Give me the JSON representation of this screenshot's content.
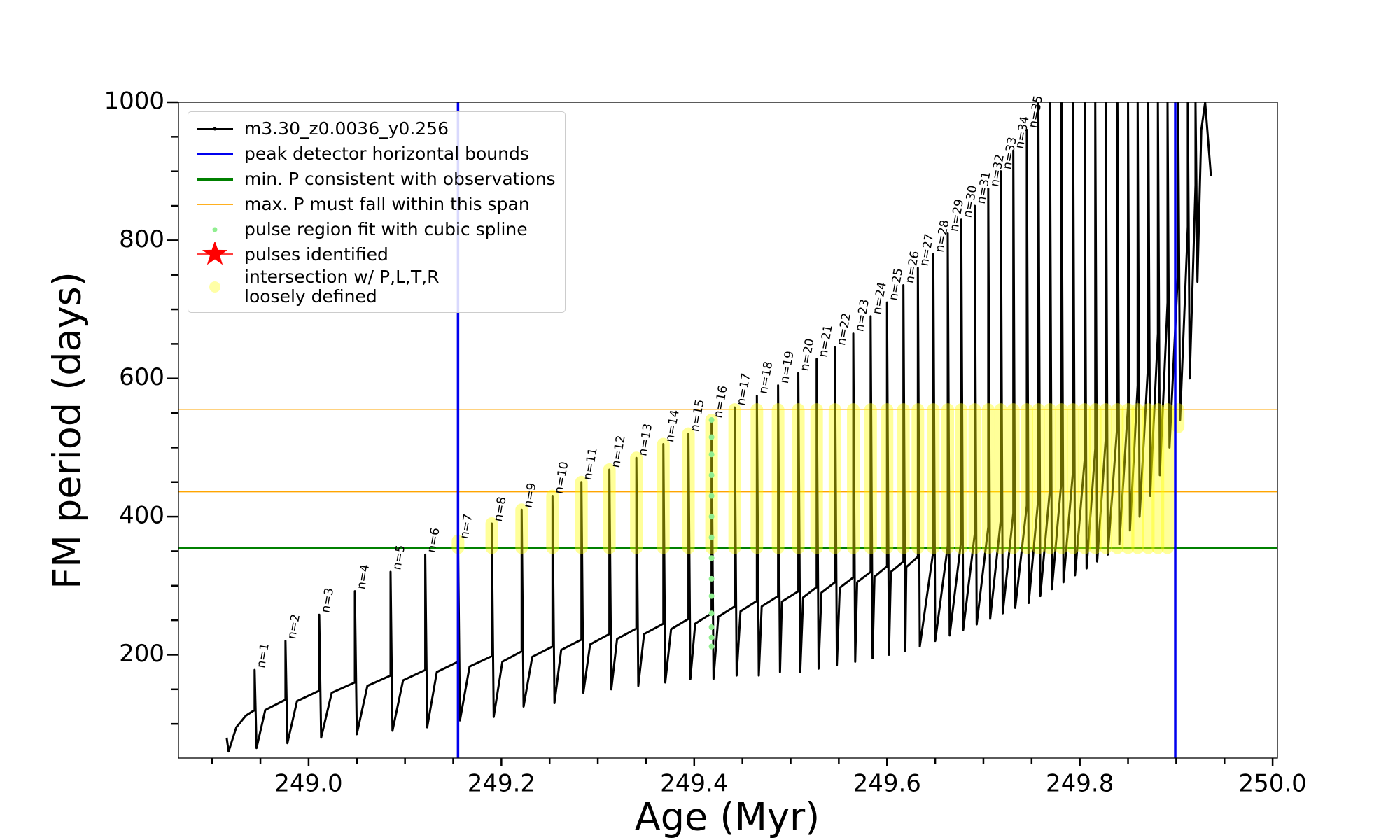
{
  "chart_data": {
    "type": "line",
    "x_label": "Age (Myr)",
    "y_label": "FM period (days)",
    "xlim": [
      248.865,
      250.005
    ],
    "ylim": [
      50.5,
      1000
    ],
    "xticks": [
      {
        "value": 249,
        "label": "249.0"
      },
      {
        "value": 249.2,
        "label": "249.2"
      },
      {
        "value": 249.4,
        "label": "249.4"
      },
      {
        "value": 249.6,
        "label": "249.6"
      },
      {
        "value": 249.8,
        "label": "249.8"
      },
      {
        "value": 250,
        "label": "250.0"
      }
    ],
    "xminorticks": [
      248.9,
      248.95,
      249.05,
      249.1,
      249.15,
      249.25,
      249.3,
      249.35,
      249.45,
      249.5,
      249.55,
      249.65,
      249.7,
      249.75,
      249.85,
      249.9,
      249.95
    ],
    "yticks": [
      200,
      400,
      600,
      800,
      1000
    ],
    "yminorticks": [
      100,
      150,
      250,
      300,
      350,
      450,
      500,
      550,
      650,
      700,
      750,
      850,
      900,
      950
    ],
    "legend": "upper left",
    "series": [
      {
        "name": "m3.30_z0.0036_y0.256",
        "kind": "line",
        "color": "#000000",
        "x": [
          248.915,
          248.917,
          248.925,
          248.935,
          248.944,
          248.944,
          248.946,
          248.955,
          248.976,
          248.976,
          248.978,
          248.988,
          249.011,
          249.011,
          249.013,
          249.024,
          249.048,
          249.048,
          249.05,
          249.061,
          249.085,
          249.085,
          249.087,
          249.098,
          249.121,
          249.121,
          249.123,
          249.133,
          249.155,
          249.155,
          249.157,
          249.167,
          249.19,
          249.19,
          249.192,
          249.201,
          249.221,
          249.221,
          249.223,
          249.232,
          249.253,
          249.253,
          249.255,
          249.262,
          249.283,
          249.283,
          249.285,
          249.292,
          249.312,
          249.312,
          249.314,
          249.32,
          249.34,
          249.34,
          249.342,
          249.348,
          249.368,
          249.368,
          249.37,
          249.376,
          249.394,
          249.394,
          249.396,
          249.401,
          249.418,
          249.418,
          249.42,
          249.425,
          249.442,
          249.442,
          249.444,
          249.448,
          249.465,
          249.465,
          249.467,
          249.47,
          249.487,
          249.487,
          249.489,
          249.491,
          249.508,
          249.508,
          249.51,
          249.513,
          249.527,
          249.527,
          249.529,
          249.532,
          249.546,
          249.546,
          249.548,
          249.551,
          249.565,
          249.565,
          249.567,
          249.569,
          249.583,
          249.583,
          249.585,
          249.587,
          249.6,
          249.6,
          249.602,
          249.604,
          249.617,
          249.617,
          249.619,
          249.62,
          249.632,
          249.632,
          249.634,
          249.648,
          249.648,
          249.65,
          249.663,
          249.663,
          249.665,
          249.677,
          249.677,
          249.679,
          249.691,
          249.691,
          249.693,
          249.705,
          249.705,
          249.707,
          249.718,
          249.718,
          249.72,
          249.731,
          249.731,
          249.733,
          249.745,
          249.745,
          249.747,
          249.757,
          249.757,
          249.759,
          249.769,
          249.769,
          249.771,
          249.781,
          249.781,
          249.783,
          249.793,
          249.793,
          249.795,
          249.805,
          249.805,
          249.807,
          249.816,
          249.816,
          249.818,
          249.827,
          249.827,
          249.829,
          249.839,
          249.839,
          249.841,
          249.85,
          249.85,
          249.852,
          249.86,
          249.86,
          249.862,
          249.871,
          249.871,
          249.873,
          249.881,
          249.881,
          249.883,
          249.891,
          249.891,
          249.893,
          249.902,
          249.902,
          249.904,
          249.912,
          249.912,
          249.914,
          249.92,
          249.92,
          249.922,
          249.926,
          249.93,
          249.936
        ],
        "values": [
          80,
          60,
          95,
          112,
          120,
          178,
          65,
          120,
          135,
          220,
          72,
          133,
          148,
          258,
          80,
          145,
          160,
          292,
          85,
          155,
          170,
          320,
          90,
          163,
          178,
          345,
          95,
          175,
          190,
          365,
          105,
          183,
          198,
          390,
          110,
          190,
          205,
          410,
          125,
          197,
          212,
          430,
          130,
          207,
          222,
          450,
          145,
          215,
          230,
          468,
          150,
          223,
          238,
          485,
          155,
          230,
          245,
          505,
          160,
          237,
          252,
          520,
          165,
          245,
          260,
          540,
          165,
          255,
          270,
          558,
          170,
          263,
          278,
          575,
          170,
          270,
          285,
          590,
          175,
          277,
          292,
          608,
          175,
          283,
          298,
          628,
          180,
          290,
          305,
          645,
          185,
          297,
          312,
          665,
          190,
          305,
          320,
          690,
          195,
          313,
          328,
          710,
          200,
          320,
          335,
          735,
          205,
          327,
          342,
          760,
          212,
          350,
          780,
          220,
          358,
          810,
          228,
          366,
          830,
          236,
          375,
          850,
          244,
          385,
          875,
          252,
          395,
          900,
          260,
          405,
          930,
          268,
          416,
          960,
          275,
          428,
          1000,
          285,
          440,
          1000,
          295,
          453,
          1000,
          305,
          467,
          1000,
          315,
          482,
          1000,
          325,
          498,
          1000,
          335,
          515,
          1000,
          345,
          535,
          1000,
          360,
          560,
          1000,
          380,
          590,
          1000,
          400,
          625,
          1000,
          430,
          665,
          1000,
          460,
          710,
          1000,
          500,
          760,
          1000,
          540,
          820,
          1000,
          600,
          880,
          1000,
          740,
          960,
          1000,
          893
        ]
      },
      {
        "name": "peak detector horizontal bounds",
        "kind": "vline",
        "color": "#0000ee",
        "x": [
          249.155,
          249.899
        ]
      },
      {
        "name": "min. P consistent with observations",
        "kind": "hline",
        "color": "#008000",
        "values": [
          354.8
        ]
      },
      {
        "name": "max. P must fall within this span",
        "kind": "hline-thin",
        "color": "#ffa500",
        "values": [
          436,
          555.4
        ]
      },
      {
        "name": "pulse region fit with cubic spline",
        "kind": "scatter",
        "color": "#90ee90",
        "x": [
          249.418,
          249.418,
          249.418,
          249.418,
          249.418,
          249.418,
          249.418,
          249.418,
          249.418,
          249.418,
          249.418,
          249.418,
          249.418,
          249.418
        ],
        "values": [
          212,
          225,
          240,
          260,
          285,
          310,
          340,
          370,
          400,
          430,
          460,
          490,
          515,
          540
        ]
      },
      {
        "name": "pulses identified",
        "kind": "star",
        "color": "#ff0000",
        "x": [],
        "values": []
      },
      {
        "name": "intersection w/ P,L,T,R\nloosely defined",
        "kind": "band",
        "color": "#ffff00",
        "x": [
          249.155,
          249.19,
          249.221,
          249.253,
          249.283,
          249.312,
          249.34,
          249.368,
          249.394,
          249.418,
          249.442,
          249.465,
          249.487,
          249.508,
          249.527,
          249.546,
          249.565,
          249.583,
          249.6,
          249.617,
          249.632,
          249.648,
          249.663,
          249.677,
          249.691,
          249.705,
          249.718,
          249.731,
          249.745,
          249.757,
          249.769,
          249.781,
          249.793,
          249.805,
          249.816,
          249.827,
          249.839,
          249.85,
          249.86,
          249.871,
          249.881,
          249.891,
          249.902
        ],
        "low": [
          355,
          355,
          355,
          355,
          355,
          355,
          355,
          355,
          355,
          355,
          355,
          355,
          355,
          355,
          355,
          355,
          355,
          355,
          355,
          355,
          355,
          355,
          355,
          355,
          355,
          355,
          355,
          355,
          355,
          355,
          355,
          355,
          355,
          355,
          355,
          355,
          355,
          355,
          355,
          355,
          355,
          355,
          530
        ],
        "high": [
          365,
          390,
          410,
          430,
          450,
          468,
          485,
          505,
          520,
          540,
          555,
          555,
          555,
          555,
          555,
          555,
          555,
          555,
          555,
          555,
          555,
          555,
          555,
          555,
          555,
          555,
          555,
          555,
          555,
          555,
          555,
          555,
          555,
          555,
          555,
          555,
          555,
          555,
          555,
          555,
          555,
          555,
          555
        ]
      }
    ],
    "annotations": [
      {
        "text": "n=1",
        "x": 248.944,
        "y": 178
      },
      {
        "text": "n=2",
        "x": 248.976,
        "y": 220
      },
      {
        "text": "n=3",
        "x": 249.011,
        "y": 258
      },
      {
        "text": "n=4",
        "x": 249.048,
        "y": 292
      },
      {
        "text": "n=5",
        "x": 249.085,
        "y": 320
      },
      {
        "text": "n=6",
        "x": 249.121,
        "y": 345
      },
      {
        "text": "n=7",
        "x": 249.155,
        "y": 365
      },
      {
        "text": "n=8",
        "x": 249.19,
        "y": 390
      },
      {
        "text": "n=9",
        "x": 249.221,
        "y": 410
      },
      {
        "text": "n=10",
        "x": 249.253,
        "y": 430
      },
      {
        "text": "n=11",
        "x": 249.283,
        "y": 450
      },
      {
        "text": "n=12",
        "x": 249.312,
        "y": 468
      },
      {
        "text": "n=13",
        "x": 249.34,
        "y": 485
      },
      {
        "text": "n=14",
        "x": 249.368,
        "y": 505
      },
      {
        "text": "n=15",
        "x": 249.394,
        "y": 520
      },
      {
        "text": "n=16",
        "x": 249.418,
        "y": 540
      },
      {
        "text": "n=17",
        "x": 249.442,
        "y": 558
      },
      {
        "text": "n=18",
        "x": 249.465,
        "y": 575
      },
      {
        "text": "n=19",
        "x": 249.487,
        "y": 590
      },
      {
        "text": "n=20",
        "x": 249.508,
        "y": 608
      },
      {
        "text": "n=21",
        "x": 249.527,
        "y": 628
      },
      {
        "text": "n=22",
        "x": 249.546,
        "y": 645
      },
      {
        "text": "n=23",
        "x": 249.565,
        "y": 665
      },
      {
        "text": "n=24",
        "x": 249.583,
        "y": 690
      },
      {
        "text": "n=25",
        "x": 249.6,
        "y": 710
      },
      {
        "text": "n=26",
        "x": 249.617,
        "y": 735
      },
      {
        "text": "n=27",
        "x": 249.632,
        "y": 760
      },
      {
        "text": "n=28",
        "x": 249.648,
        "y": 780
      },
      {
        "text": "n=29",
        "x": 249.663,
        "y": 810
      },
      {
        "text": "n=30",
        "x": 249.677,
        "y": 830
      },
      {
        "text": "n=31",
        "x": 249.691,
        "y": 850
      },
      {
        "text": "n=32",
        "x": 249.705,
        "y": 875
      },
      {
        "text": "n=33",
        "x": 249.718,
        "y": 900
      },
      {
        "text": "n=34",
        "x": 249.731,
        "y": 930
      },
      {
        "text": "n=35",
        "x": 249.745,
        "y": 960
      }
    ]
  }
}
